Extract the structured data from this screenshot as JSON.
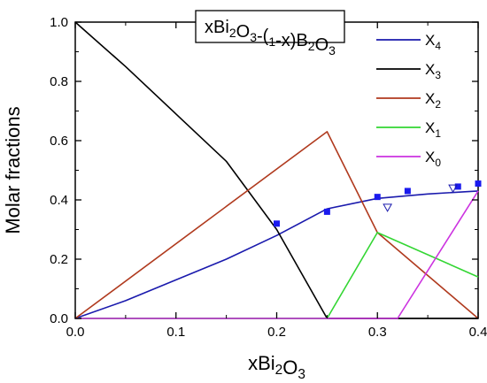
{
  "chart_data": {
    "type": "line",
    "title": "xBi2O3-(1-x)B2O3",
    "xlabel": "xBi2O3",
    "ylabel": "Molar fractions",
    "xlim": [
      0,
      0.4
    ],
    "ylim": [
      0,
      1.0
    ],
    "xticks": [
      "0.0",
      "0.1",
      "0.2",
      "0.3",
      "0.4"
    ],
    "yticks": [
      "0.0",
      "0.2",
      "0.4",
      "0.6",
      "0.8",
      "1.0"
    ],
    "grid": false,
    "legend_position": "top-right",
    "series": [
      {
        "name": "X4",
        "sub": "4",
        "color": "#1a1aad",
        "x": [
          0,
          0.05,
          0.1,
          0.15,
          0.2,
          0.25,
          0.3,
          0.35,
          0.4
        ],
        "y": [
          0,
          0.06,
          0.13,
          0.2,
          0.28,
          0.37,
          0.405,
          0.42,
          0.43
        ]
      },
      {
        "name": "X3",
        "sub": "3",
        "color": "#000000",
        "x": [
          0,
          0.05,
          0.1,
          0.15,
          0.2,
          0.25,
          0.3,
          0.35,
          0.4
        ],
        "y": [
          1.0,
          0.85,
          0.69,
          0.53,
          0.3,
          0.0,
          0.0,
          0.0,
          0.0
        ]
      },
      {
        "name": "X2",
        "sub": "2",
        "color": "#b03a1e",
        "x": [
          0,
          0.25,
          0.3,
          0.4
        ],
        "y": [
          0,
          0.63,
          0.29,
          0.0
        ]
      },
      {
        "name": "X1",
        "sub": "1",
        "color": "#33d633",
        "x": [
          0,
          0.25,
          0.3,
          0.4
        ],
        "y": [
          0,
          0,
          0.29,
          0.14
        ]
      },
      {
        "name": "X0",
        "sub": "0",
        "color": "#cc33e0",
        "x": [
          0,
          0.32,
          0.4
        ],
        "y": [
          0,
          0,
          0.43
        ]
      }
    ],
    "markers": {
      "filled_squares": {
        "color": "#1a1aee",
        "points": [
          [
            0.2,
            0.32
          ],
          [
            0.25,
            0.36
          ],
          [
            0.3,
            0.41
          ],
          [
            0.33,
            0.43
          ],
          [
            0.38,
            0.445
          ],
          [
            0.4,
            0.455
          ]
        ]
      },
      "open_triangles": {
        "color": "#1a1aad",
        "points": [
          [
            0.31,
            0.375
          ],
          [
            0.375,
            0.44
          ]
        ]
      }
    }
  }
}
